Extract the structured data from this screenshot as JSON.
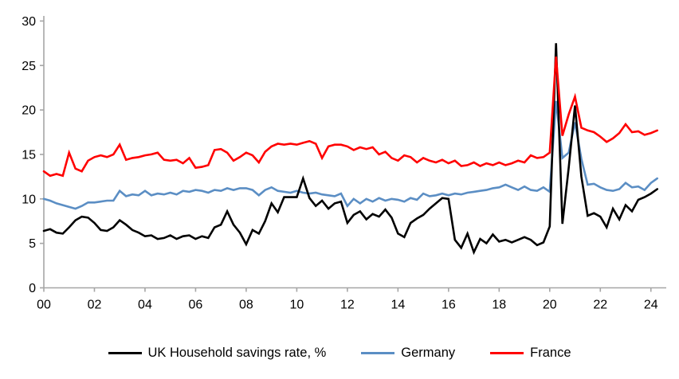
{
  "chart_data": {
    "type": "line",
    "title": "",
    "xlabel": "",
    "ylabel": "",
    "grid": false,
    "legend_position": "bottom",
    "ylim": [
      0,
      30
    ],
    "y_tick_values": [
      0,
      5,
      10,
      15,
      20,
      25,
      30
    ],
    "y_tick_labels": [
      "0",
      "5",
      "10",
      "15",
      "20",
      "25",
      "30"
    ],
    "x_tick_year_offsets": [
      0,
      2,
      4,
      6,
      8,
      10,
      12,
      14,
      16,
      18,
      20,
      22,
      24
    ],
    "x_tick_labels": [
      "00",
      "02",
      "04",
      "06",
      "08",
      "10",
      "12",
      "14",
      "16",
      "18",
      "20",
      "22",
      "24"
    ],
    "x_start_year": 2000,
    "x_step_years": 0.25,
    "frequency": "quarterly",
    "axis_color": "#a6a6a6",
    "text_color": "#000000",
    "series": [
      {
        "name": "UK Household savings rate, %",
        "color": "#000000",
        "values": [
          6.4,
          6.6,
          6.2,
          6.1,
          6.8,
          7.6,
          8.0,
          7.9,
          7.3,
          6.5,
          6.4,
          6.8,
          7.6,
          7.1,
          6.5,
          6.2,
          5.8,
          5.9,
          5.5,
          5.6,
          5.9,
          5.5,
          5.8,
          5.9,
          5.5,
          5.8,
          5.6,
          6.8,
          7.1,
          8.6,
          7.1,
          6.2,
          4.9,
          6.5,
          6.1,
          7.5,
          9.5,
          8.5,
          10.2,
          10.2,
          10.2,
          12.3,
          10.1,
          9.2,
          9.8,
          8.9,
          9.5,
          9.7,
          7.3,
          8.2,
          8.6,
          7.7,
          8.3,
          8.0,
          8.8,
          7.9,
          6.1,
          5.7,
          7.3,
          7.8,
          8.2,
          8.9,
          9.5,
          10.1,
          10.0,
          5.4,
          4.5,
          6.1,
          4.0,
          5.5,
          5.0,
          6.0,
          5.2,
          5.4,
          5.1,
          5.4,
          5.7,
          5.4,
          4.8,
          5.1,
          6.9,
          27.5,
          7.2,
          13.5,
          20.5,
          12.5,
          8.1,
          8.4,
          8.0,
          6.8,
          8.9,
          7.7,
          9.3,
          8.6,
          9.9,
          10.2,
          10.6,
          11.1
        ]
      },
      {
        "name": "Germany",
        "color": "#5b8ec4",
        "values": [
          10.0,
          9.8,
          9.5,
          9.3,
          9.1,
          8.9,
          9.2,
          9.6,
          9.6,
          9.7,
          9.8,
          9.8,
          10.9,
          10.3,
          10.5,
          10.4,
          10.9,
          10.4,
          10.6,
          10.5,
          10.7,
          10.5,
          10.9,
          10.8,
          11.0,
          10.9,
          10.7,
          11.0,
          10.9,
          11.2,
          11.0,
          11.2,
          11.2,
          11.0,
          10.4,
          11.0,
          11.3,
          10.9,
          10.8,
          10.7,
          10.9,
          10.7,
          10.6,
          10.7,
          10.5,
          10.4,
          10.3,
          10.6,
          9.2,
          10.0,
          9.5,
          10.0,
          9.7,
          10.1,
          9.8,
          10.0,
          9.9,
          9.7,
          10.1,
          9.9,
          10.6,
          10.3,
          10.4,
          10.6,
          10.4,
          10.6,
          10.5,
          10.7,
          10.8,
          10.9,
          11.0,
          11.2,
          11.3,
          11.6,
          11.3,
          11.0,
          11.4,
          11.0,
          10.9,
          11.3,
          10.8,
          21.0,
          14.6,
          15.2,
          18.6,
          14.5,
          11.6,
          11.7,
          11.3,
          11.0,
          10.9,
          11.1,
          11.8,
          11.3,
          11.4,
          11.0,
          11.8,
          12.3
        ]
      },
      {
        "name": "France",
        "color": "#ff0000",
        "values": [
          13.1,
          12.6,
          12.8,
          12.6,
          15.2,
          13.4,
          13.1,
          14.3,
          14.7,
          14.9,
          14.7,
          15.0,
          16.1,
          14.4,
          14.6,
          14.7,
          14.9,
          15.0,
          15.2,
          14.4,
          14.3,
          14.4,
          14.0,
          14.6,
          13.5,
          13.6,
          13.8,
          15.5,
          15.6,
          15.2,
          14.3,
          14.7,
          15.2,
          14.9,
          14.1,
          15.3,
          15.9,
          16.2,
          16.1,
          16.2,
          16.1,
          16.3,
          16.5,
          16.2,
          14.6,
          15.9,
          16.1,
          16.1,
          15.9,
          15.5,
          15.8,
          15.6,
          15.8,
          15.0,
          15.3,
          14.6,
          14.3,
          14.9,
          14.7,
          14.1,
          14.6,
          14.3,
          14.1,
          14.4,
          14.0,
          14.3,
          13.7,
          13.8,
          14.1,
          13.7,
          14.0,
          13.8,
          14.1,
          13.8,
          14.0,
          14.3,
          14.1,
          14.9,
          14.6,
          14.7,
          15.2,
          26.0,
          17.1,
          19.5,
          21.5,
          18.0,
          17.7,
          17.5,
          17.0,
          16.4,
          16.8,
          17.4,
          18.4,
          17.5,
          17.6,
          17.2,
          17.4,
          17.7
        ]
      }
    ]
  }
}
